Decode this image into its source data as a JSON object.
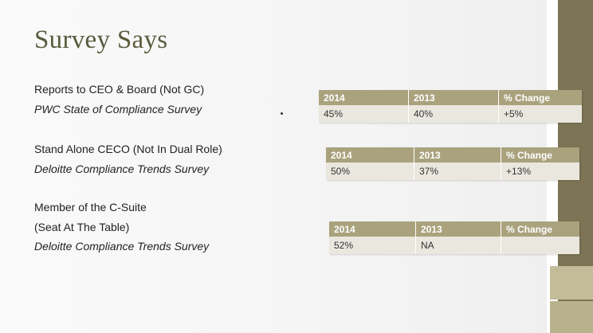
{
  "slide": {
    "title": "Survey Says",
    "items": [
      {
        "label": "Reports to CEO & Board (Not GC)",
        "source": "PWC State of Compliance Survey"
      },
      {
        "label": "Stand Alone CECO (Not In Dual Role)",
        "source": "Deloitte Compliance Trends Survey"
      },
      {
        "label": "Member of the C-Suite",
        "label_line2": "(Seat At The Table)",
        "source": "Deloitte Compliance Trends Survey"
      }
    ],
    "tables": [
      {
        "headers": [
          "2014",
          "2013",
          "% Change"
        ],
        "values": [
          "45%",
          "40%",
          "+5%"
        ]
      },
      {
        "headers": [
          "2014",
          "2013",
          "% Change"
        ],
        "values": [
          "50%",
          "37%",
          "+13%"
        ]
      },
      {
        "headers": [
          "2014",
          "2013",
          "% Change"
        ],
        "values": [
          "52%",
          "NA",
          ""
        ]
      }
    ],
    "colors": {
      "title": "#5a5a3e",
      "header": "#a9a27d",
      "cell": "#e9e7de",
      "accent_bar": "#7c7454"
    }
  }
}
